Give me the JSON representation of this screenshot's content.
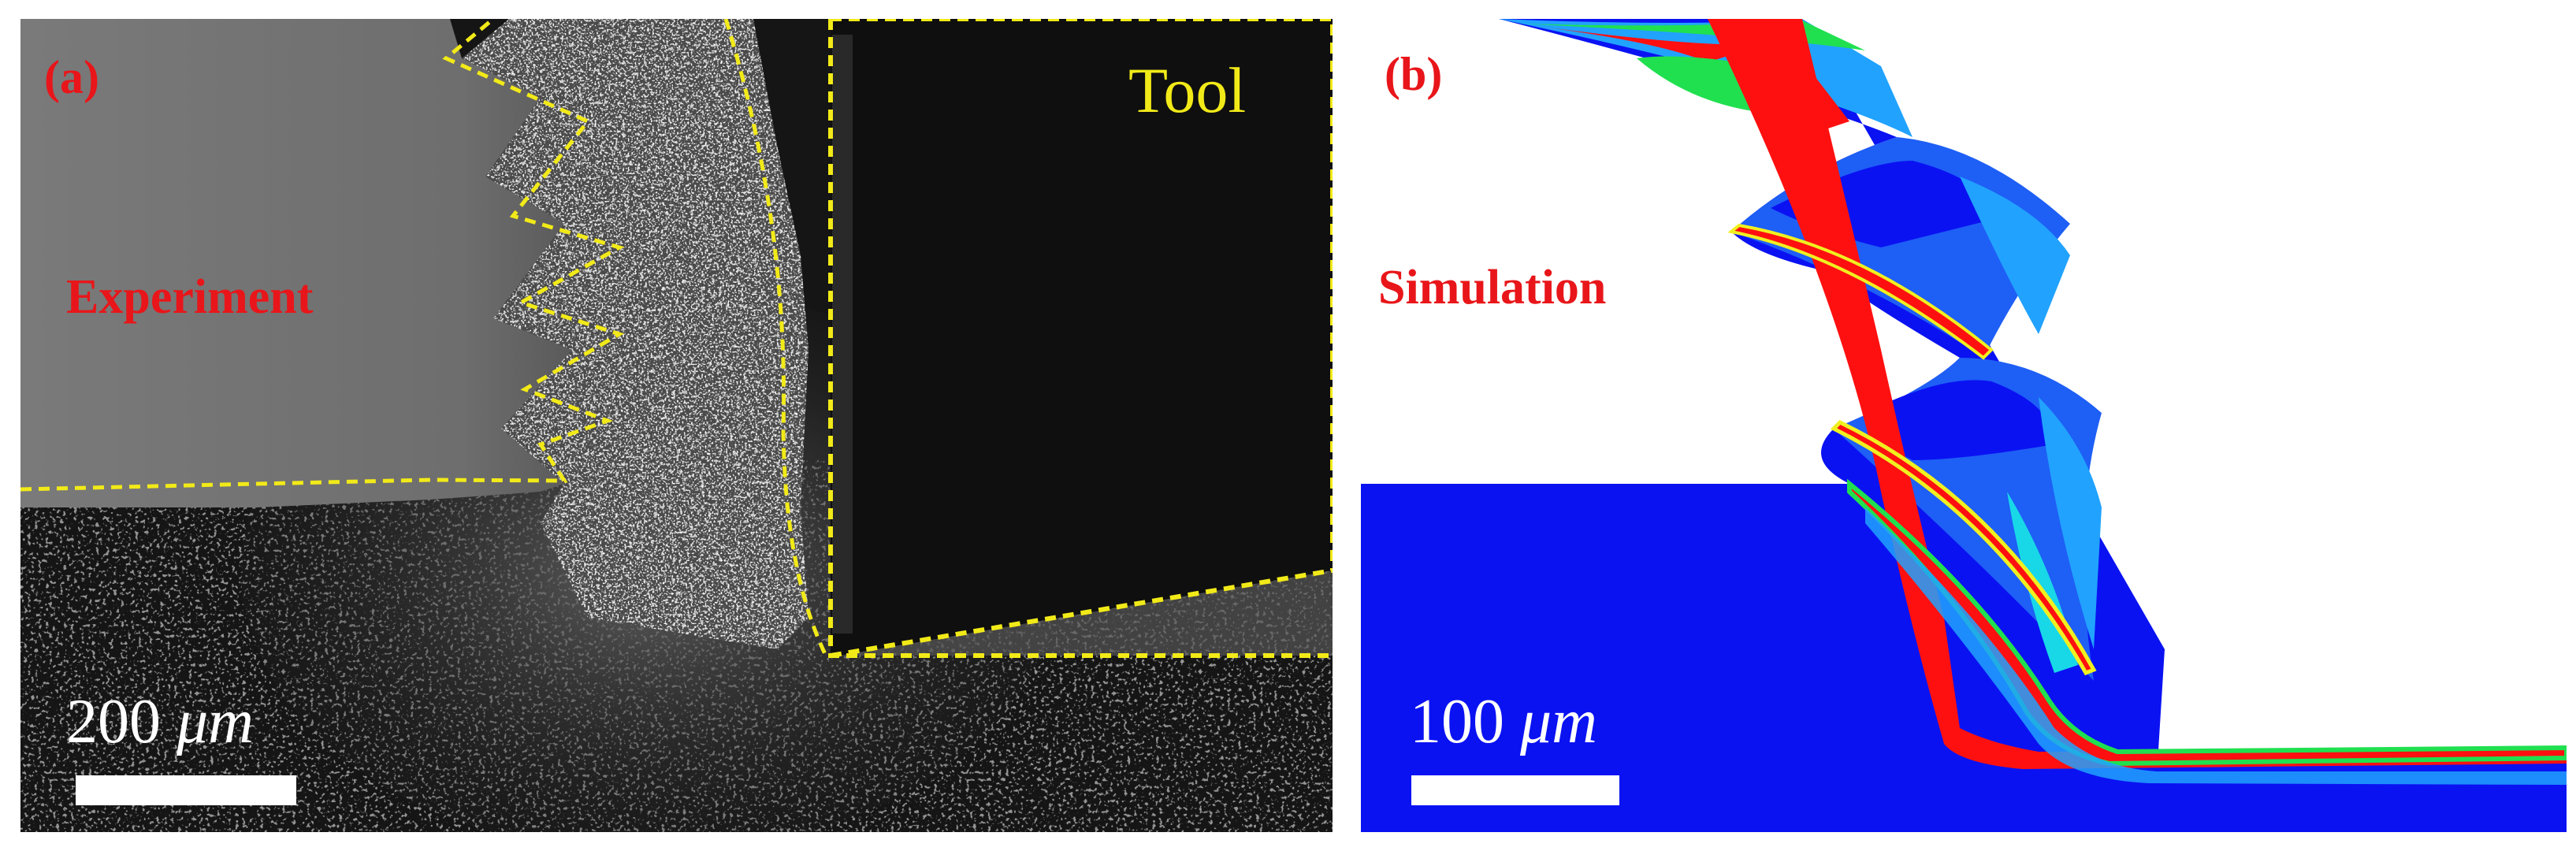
{
  "panel_a": {
    "letter": "(a)",
    "callout": "Experiment",
    "tool_label": "Tool",
    "scale": {
      "number": "200",
      "unit": "μm"
    },
    "colors": {
      "outline": "#f2ea18",
      "label": "#e8161a",
      "workpiece": "#767676",
      "tool": "#0f0f0f"
    }
  },
  "panel_b": {
    "letter": "(b)",
    "callout": "Simulation",
    "scale": {
      "number": "100",
      "unit": "μm"
    },
    "colors": {
      "base": "#0a12f2",
      "mid_blue": "#1e5ff5",
      "light_blue": "#21a2ff",
      "cyan": "#18d8e8",
      "green": "#20e050",
      "yellow": "#f0f020",
      "red": "#ff1010",
      "label": "#e8161a"
    }
  }
}
